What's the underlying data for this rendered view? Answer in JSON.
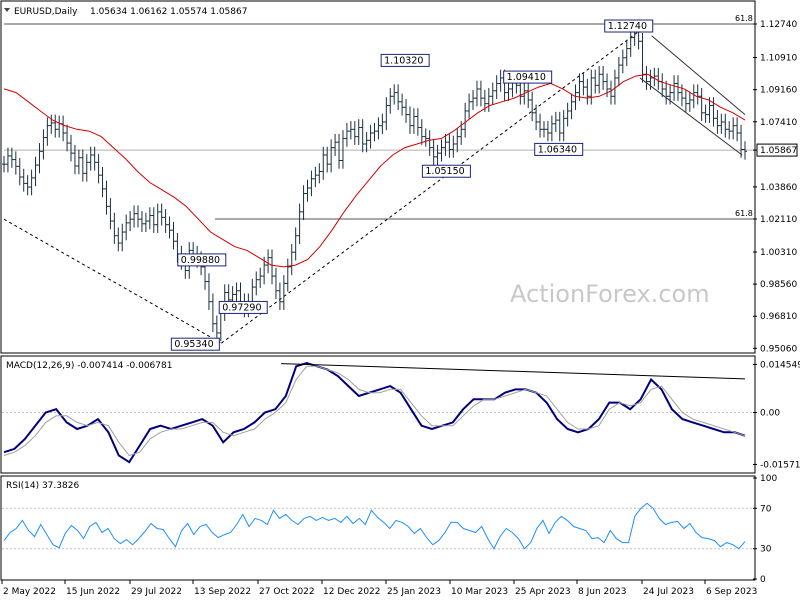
{
  "colors": {
    "background": "#ffffff",
    "price_bar": "#1a2f3f",
    "moving_average": "#d40000",
    "macd_line": "#00007f",
    "signal_line": "#a0a0a0",
    "rsi_line": "#1e90ff",
    "annotation_box": "#1a237e",
    "watermark": "#c8c8c8"
  },
  "header": {
    "symbol_label": "EURUSD,Daily",
    "ohlc_label": "1.05634 1.06162 1.05574 1.05867"
  },
  "watermark": "ActionForex.com",
  "chart_data": [
    {
      "type": "candlestick",
      "title": "EURUSD,Daily",
      "y_ticks": [
        "1.12740",
        "1.10910",
        "1.09160",
        "1.07410",
        "1.05867",
        "1.03860",
        "1.02110",
        "1.00310",
        "0.98560",
        "0.96810",
        "0.95060"
      ],
      "ylim": [
        0.9486,
        1.1394
      ],
      "current_price_label": "1.05867",
      "x_ticks": [
        "2 May 2022",
        "15 Jun 2022",
        "29 Jul 2022",
        "13 Sep 2022",
        "27 Oct 2022",
        "12 Dec 2022",
        "25 Jan 2023",
        "10 Mar 2023",
        "25 Apr 2023",
        "8 Jun 2023",
        "24 Jul 2023",
        "6 Sep 2023"
      ],
      "key_levels": [
        {
          "label": "0.95340",
          "x": "28 Sep 2022",
          "y": 0.9534
        },
        {
          "label": "0.99880",
          "x": "5 Sep 2022",
          "y": 0.9988
        },
        {
          "label": "0.97290",
          "x": "13 Oct 2022",
          "y": 0.9729
        },
        {
          "label": "1.10320",
          "x": "1 Feb 2023",
          "y": 1.1032
        },
        {
          "label": "1.05150",
          "x": "15 Mar 2023",
          "y": 1.0515
        },
        {
          "label": "1.09410",
          "x": "26 Apr 2023",
          "y": 1.0941
        },
        {
          "label": "1.06340",
          "x": "31 May 2023",
          "y": 1.0634
        },
        {
          "label": "1.12740",
          "x": "18 Jul 2023",
          "y": 1.1274
        }
      ],
      "fib_levels": [
        {
          "label": "61.8",
          "y": 1.1274
        },
        {
          "label": "61.8",
          "y": 1.0211
        }
      ],
      "closes": [
        1.051,
        1.0555,
        1.0535,
        1.0498,
        1.044,
        1.0405,
        1.0385,
        1.0435,
        1.0505,
        1.058,
        1.0655,
        1.072,
        1.0735,
        1.07,
        1.073,
        1.068,
        1.0625,
        1.057,
        1.05,
        1.0545,
        1.046,
        1.052,
        1.056,
        1.052,
        1.045,
        1.0375,
        1.028,
        1.02,
        1.012,
        1.008,
        1.014,
        1.019,
        1.021,
        1.024,
        1.021,
        1.0185,
        1.02,
        1.023,
        1.018,
        1.025,
        1.022,
        1.018,
        1.015,
        1.009,
        1.002,
        0.998,
        0.993,
        1.004,
        1.002,
        0.999,
        0.995,
        0.987,
        0.976,
        0.964,
        0.959,
        0.97,
        0.981,
        0.977,
        0.98,
        0.982,
        0.976,
        0.972,
        0.976,
        0.984,
        0.988,
        0.99,
        0.996,
        1.0,
        0.99,
        0.982,
        0.976,
        0.986,
        0.995,
        1.003,
        1.012,
        1.025,
        1.035,
        1.038,
        1.043,
        1.045,
        1.047,
        1.056,
        1.051,
        1.06,
        1.063,
        1.053,
        1.065,
        1.069,
        1.07,
        1.066,
        1.071,
        1.062,
        1.064,
        1.068,
        1.069,
        1.072,
        1.074,
        1.083,
        1.088,
        1.09,
        1.085,
        1.082,
        1.078,
        1.072,
        1.077,
        1.071,
        1.066,
        1.065,
        1.06,
        1.055,
        1.057,
        1.06,
        1.063,
        1.059,
        1.062,
        1.066,
        1.07,
        1.08,
        1.085,
        1.087,
        1.092,
        1.087,
        1.084,
        1.088,
        1.091,
        1.095,
        1.098,
        1.09,
        1.092,
        1.097,
        1.094,
        1.088,
        1.091,
        1.086,
        1.079,
        1.074,
        1.07,
        1.07,
        1.068,
        1.073,
        1.075,
        1.068,
        1.076,
        1.08,
        1.085,
        1.09,
        1.096,
        1.093,
        1.088,
        1.098,
        1.094,
        1.1,
        1.096,
        1.092,
        1.088,
        1.098,
        1.105,
        1.109,
        1.114,
        1.12,
        1.123,
        1.118,
        1.1,
        1.096,
        1.098,
        1.099,
        1.096,
        1.092,
        1.088,
        1.09,
        1.095,
        1.09,
        1.087,
        1.084,
        1.086,
        1.09,
        1.088,
        1.079,
        1.078,
        1.083,
        1.076,
        1.072,
        1.074,
        1.07,
        1.069,
        1.072,
        1.068,
        1.059,
        1.058
      ],
      "ma_values": [
        1.092,
        1.09,
        1.085,
        1.08,
        1.075,
        1.072,
        1.07,
        1.069,
        1.066,
        1.06,
        1.054,
        1.047,
        1.041,
        1.037,
        1.033,
        1.028,
        1.021,
        1.014,
        1.01,
        1.006,
        1.004,
        1.0,
        0.996,
        0.995,
        0.996,
        0.999,
        1.006,
        1.015,
        1.025,
        1.034,
        1.042,
        1.05,
        1.056,
        1.06,
        1.062,
        1.064,
        1.065,
        1.069,
        1.074,
        1.079,
        1.083,
        1.085,
        1.087,
        1.09,
        1.093,
        1.095,
        1.092,
        1.088,
        1.087,
        1.088,
        1.091,
        1.096,
        1.099,
        1.1,
        1.096,
        1.094,
        1.092,
        1.088,
        1.086,
        1.082,
        1.079,
        1.075
      ],
      "moving_average_color": "#d40000",
      "resistance_channel": {
        "from": {
          "x": "20 Jul 2023",
          "y": 1.121
        },
        "to": {
          "x": "22 Sep 2023",
          "y": 1.078
        }
      }
    },
    {
      "type": "line",
      "title": "MACD(12,26,9)",
      "header_label": "MACD(12,26,9) -0.007414 -0.006781",
      "y_ticks": [
        "0.014549",
        "0.00",
        "-0.015712"
      ],
      "ylim": [
        -0.018,
        0.0165
      ],
      "series": [
        {
          "name": "MACD",
          "values": [
            -0.012,
            -0.011,
            -0.008,
            -0.004,
            0.0,
            0.001,
            -0.003,
            -0.005,
            -0.004,
            -0.002,
            -0.006,
            -0.013,
            -0.015,
            -0.01,
            -0.005,
            -0.004,
            -0.005,
            -0.004,
            -0.003,
            -0.002,
            -0.004,
            -0.009,
            -0.006,
            -0.005,
            -0.003,
            0.0,
            0.001,
            0.005,
            0.014,
            0.015,
            0.014,
            0.013,
            0.011,
            0.008,
            0.005,
            0.006,
            0.007,
            0.008,
            0.006,
            0.001,
            -0.004,
            -0.005,
            -0.004,
            -0.003,
            0.001,
            0.004,
            0.004,
            0.004,
            0.006,
            0.007,
            0.007,
            0.006,
            0.003,
            -0.002,
            -0.005,
            -0.006,
            -0.005,
            -0.002,
            0.003,
            0.003,
            0.001,
            0.004,
            0.01,
            0.007,
            0.001,
            -0.002,
            -0.003,
            -0.004,
            -0.005,
            -0.006,
            -0.006,
            -0.007
          ]
        },
        {
          "name": "Signal",
          "values": [
            -0.013,
            -0.012,
            -0.01,
            -0.007,
            -0.003,
            -0.001,
            -0.001,
            -0.003,
            -0.004,
            -0.003,
            -0.004,
            -0.009,
            -0.013,
            -0.012,
            -0.008,
            -0.006,
            -0.005,
            -0.005,
            -0.004,
            -0.003,
            -0.003,
            -0.006,
            -0.007,
            -0.006,
            -0.005,
            -0.002,
            0.0,
            0.003,
            0.01,
            0.014,
            0.014,
            0.013,
            0.012,
            0.01,
            0.007,
            0.006,
            0.006,
            0.007,
            0.007,
            0.003,
            -0.001,
            -0.004,
            -0.004,
            -0.004,
            -0.001,
            0.002,
            0.004,
            0.004,
            0.005,
            0.006,
            0.007,
            0.006,
            0.005,
            0.001,
            -0.003,
            -0.005,
            -0.005,
            -0.004,
            0.001,
            0.003,
            0.002,
            0.003,
            0.007,
            0.008,
            0.004,
            0.0,
            -0.002,
            -0.003,
            -0.004,
            -0.005,
            -0.006,
            -0.007
          ]
        }
      ],
      "trendline": {
        "from": {
          "x": "8 Nov 2022",
          "y": 0.0148
        },
        "to": {
          "x": "22 Sep 2023",
          "y": 0.0102
        }
      }
    },
    {
      "type": "line",
      "title": "RSI(14)",
      "header_label": "RSI(14) 37.3826",
      "y_ticks": [
        "100",
        "70",
        "30",
        "0"
      ],
      "ylim": [
        0,
        100
      ],
      "reference_levels": [
        70,
        30
      ],
      "series": [
        {
          "name": "RSI(14)",
          "values": [
            38,
            46,
            50,
            58,
            48,
            42,
            54,
            44,
            34,
            31,
            45,
            53,
            48,
            40,
            52,
            56,
            46,
            50,
            40,
            35,
            39,
            34,
            40,
            47,
            55,
            50,
            49,
            40,
            32,
            48,
            55,
            44,
            52,
            54,
            46,
            41,
            44,
            46,
            54,
            64,
            52,
            60,
            58,
            54,
            68,
            60,
            64,
            58,
            54,
            60,
            62,
            58,
            61,
            58,
            60,
            56,
            62,
            55,
            60,
            54,
            68,
            61,
            56,
            50,
            58,
            56,
            52,
            45,
            50,
            41,
            34,
            38,
            46,
            56,
            56,
            50,
            48,
            46,
            52,
            40,
            30,
            42,
            50,
            46,
            40,
            30,
            36,
            50,
            58,
            45,
            56,
            62,
            58,
            52,
            50,
            48,
            40,
            41,
            36,
            48,
            40,
            36,
            36,
            62,
            70,
            75,
            70,
            60,
            54,
            56,
            57,
            50,
            55,
            46,
            41,
            40,
            38,
            32,
            36,
            34,
            30,
            37
          ]
        }
      ]
    }
  ]
}
